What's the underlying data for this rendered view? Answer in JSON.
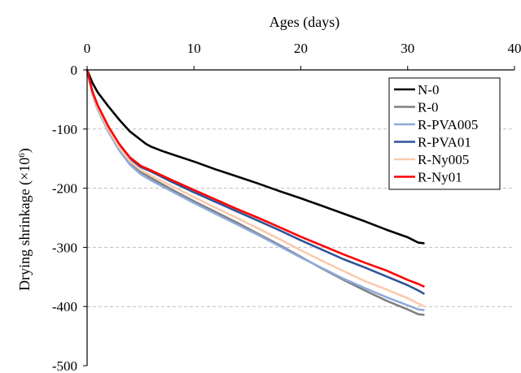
{
  "chart_data": {
    "type": "line",
    "xlabel": "Ages (days)",
    "ylabel": "Drying shrinkage (×10",
    "ylabel_superscript": "6",
    "ylabel_close": ")",
    "xlim": [
      0,
      40
    ],
    "ylim": [
      -500,
      0
    ],
    "xticks": [
      0,
      10,
      20,
      30,
      40
    ],
    "yticks": [
      0,
      -100,
      -200,
      -300,
      -400,
      -500
    ],
    "x_axis_position": "top",
    "grid": "horizontal dashed",
    "legend_position": "top-right",
    "series": [
      {
        "name": "N-0",
        "color": "#000000",
        "points": [
          [
            0,
            0
          ],
          [
            0.5,
            -22
          ],
          [
            1,
            -38
          ],
          [
            2,
            -62
          ],
          [
            3,
            -84
          ],
          [
            4,
            -104
          ],
          [
            5,
            -118
          ],
          [
            5.5,
            -125
          ],
          [
            6,
            -130
          ],
          [
            7,
            -137
          ],
          [
            8,
            -143
          ],
          [
            10,
            -155
          ],
          [
            12,
            -168
          ],
          [
            14,
            -180
          ],
          [
            16,
            -192
          ],
          [
            18,
            -205
          ],
          [
            20,
            -217
          ],
          [
            22,
            -230
          ],
          [
            24,
            -243
          ],
          [
            26,
            -256
          ],
          [
            28,
            -270
          ],
          [
            30,
            -283
          ],
          [
            31,
            -292
          ],
          [
            31.5,
            -293
          ]
        ]
      },
      {
        "name": "R-0",
        "color": "#7f7f7f",
        "points": [
          [
            0,
            0
          ],
          [
            0.5,
            -40
          ],
          [
            1,
            -65
          ],
          [
            2,
            -102
          ],
          [
            3,
            -133
          ],
          [
            4,
            -156
          ],
          [
            5,
            -172
          ],
          [
            6,
            -183
          ],
          [
            8,
            -203
          ],
          [
            10,
            -222
          ],
          [
            12,
            -240
          ],
          [
            14,
            -258
          ],
          [
            16,
            -277
          ],
          [
            18,
            -296
          ],
          [
            20,
            -316
          ],
          [
            22,
            -336
          ],
          [
            24,
            -355
          ],
          [
            26,
            -373
          ],
          [
            28,
            -390
          ],
          [
            30,
            -405
          ],
          [
            31,
            -413
          ],
          [
            31.5,
            -414
          ]
        ]
      },
      {
        "name": "R-PVA005",
        "color": "#8eaadb",
        "points": [
          [
            0,
            0
          ],
          [
            0.5,
            -42
          ],
          [
            1,
            -67
          ],
          [
            2,
            -105
          ],
          [
            3,
            -136
          ],
          [
            4,
            -160
          ],
          [
            5,
            -176
          ],
          [
            6,
            -187
          ],
          [
            8,
            -206
          ],
          [
            10,
            -225
          ],
          [
            12,
            -243
          ],
          [
            14,
            -261
          ],
          [
            16,
            -279
          ],
          [
            18,
            -298
          ],
          [
            20,
            -317
          ],
          [
            22,
            -335
          ],
          [
            24,
            -353
          ],
          [
            26,
            -369
          ],
          [
            28,
            -384
          ],
          [
            30,
            -398
          ],
          [
            31,
            -405
          ],
          [
            31.5,
            -406
          ]
        ]
      },
      {
        "name": "R-PVA01",
        "color": "#2f5597",
        "points": [
          [
            0,
            0
          ],
          [
            0.5,
            -38
          ],
          [
            1,
            -62
          ],
          [
            2,
            -98
          ],
          [
            3,
            -127
          ],
          [
            4,
            -150
          ],
          [
            5,
            -164
          ],
          [
            6,
            -172
          ],
          [
            8,
            -190
          ],
          [
            10,
            -207
          ],
          [
            12,
            -223
          ],
          [
            14,
            -239
          ],
          [
            16,
            -255
          ],
          [
            18,
            -271
          ],
          [
            20,
            -288
          ],
          [
            22,
            -304
          ],
          [
            24,
            -320
          ],
          [
            26,
            -334
          ],
          [
            28,
            -349
          ],
          [
            30,
            -364
          ],
          [
            31,
            -373
          ],
          [
            31.5,
            -378
          ]
        ]
      },
      {
        "name": "R-Ny005",
        "color": "#f8cbad",
        "points": [
          [
            0,
            0
          ],
          [
            0.5,
            -40
          ],
          [
            1,
            -64
          ],
          [
            2,
            -101
          ],
          [
            3,
            -131
          ],
          [
            4,
            -154
          ],
          [
            5,
            -169
          ],
          [
            6,
            -179
          ],
          [
            8,
            -197
          ],
          [
            10,
            -215
          ],
          [
            12,
            -233
          ],
          [
            14,
            -250
          ],
          [
            16,
            -268
          ],
          [
            18,
            -286
          ],
          [
            20,
            -305
          ],
          [
            22,
            -323
          ],
          [
            24,
            -340
          ],
          [
            26,
            -357
          ],
          [
            28,
            -371
          ],
          [
            30,
            -386
          ],
          [
            31,
            -395
          ],
          [
            31.5,
            -399
          ]
        ]
      },
      {
        "name": "R-Ny01",
        "color": "#ff0000",
        "points": [
          [
            0,
            0
          ],
          [
            0.5,
            -37
          ],
          [
            1,
            -60
          ],
          [
            2,
            -96
          ],
          [
            3,
            -125
          ],
          [
            4,
            -148
          ],
          [
            5,
            -162
          ],
          [
            6,
            -170
          ],
          [
            8,
            -187
          ],
          [
            10,
            -203
          ],
          [
            12,
            -219
          ],
          [
            14,
            -235
          ],
          [
            16,
            -250
          ],
          [
            18,
            -266
          ],
          [
            20,
            -282
          ],
          [
            22,
            -297
          ],
          [
            24,
            -312
          ],
          [
            26,
            -326
          ],
          [
            28,
            -339
          ],
          [
            30,
            -355
          ],
          [
            31,
            -362
          ],
          [
            31.5,
            -366
          ]
        ]
      }
    ]
  }
}
